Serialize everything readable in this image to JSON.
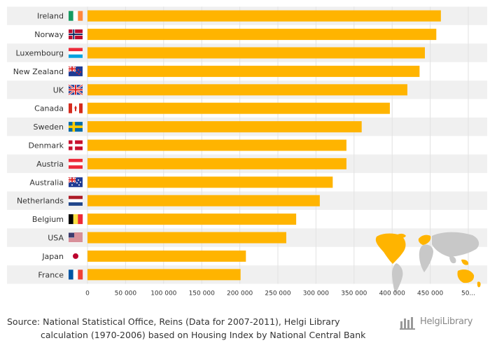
{
  "chart_data": {
    "type": "bar",
    "orientation": "horizontal",
    "categories": [
      "Ireland",
      "Norway",
      "Luxembourg",
      "New Zealand",
      "UK",
      "Canada",
      "Sweden",
      "Denmark",
      "Austria",
      "Australia",
      "Netherlands",
      "Belgium",
      "USA",
      "Japan",
      "France"
    ],
    "values": [
      464000,
      458000,
      443000,
      436000,
      420000,
      397000,
      360000,
      340000,
      340000,
      322000,
      305000,
      274000,
      261000,
      208000,
      201000
    ],
    "xlim": [
      0,
      500000
    ],
    "xticks": [
      "0",
      "50 000",
      "100 000",
      "150 000",
      "200 000",
      "250 000",
      "300 000",
      "350 000",
      "400 000",
      "450 000",
      "50..."
    ],
    "title": "",
    "xlabel": "",
    "ylabel": "",
    "bar_color": "#ffb400",
    "row_alt_color": "#f0f0f0",
    "grid": true
  },
  "flags": [
    "ireland-flag-icon",
    "norway-flag-icon",
    "luxembourg-flag-icon",
    "new-zealand-flag-icon",
    "uk-flag-icon",
    "canada-flag-icon",
    "sweden-flag-icon",
    "denmark-flag-icon",
    "austria-flag-icon",
    "australia-flag-icon",
    "netherlands-flag-icon",
    "belgium-flag-icon",
    "usa-flag-icon",
    "japan-flag-icon",
    "france-flag-icon"
  ],
  "source": {
    "line1": "Source: National Statistical Office, Reins (Data for 2007-2011), Helgi Library",
    "line2": "calculation (1970-2006) based on Housing Index by National Central Bank"
  },
  "logo": {
    "text": "HelgiLibrary",
    "icon": "library-logo-icon"
  },
  "map": {
    "icon": "world-map-icon",
    "highlight_color": "#ffb400",
    "base_color": "#c8c8c8"
  }
}
